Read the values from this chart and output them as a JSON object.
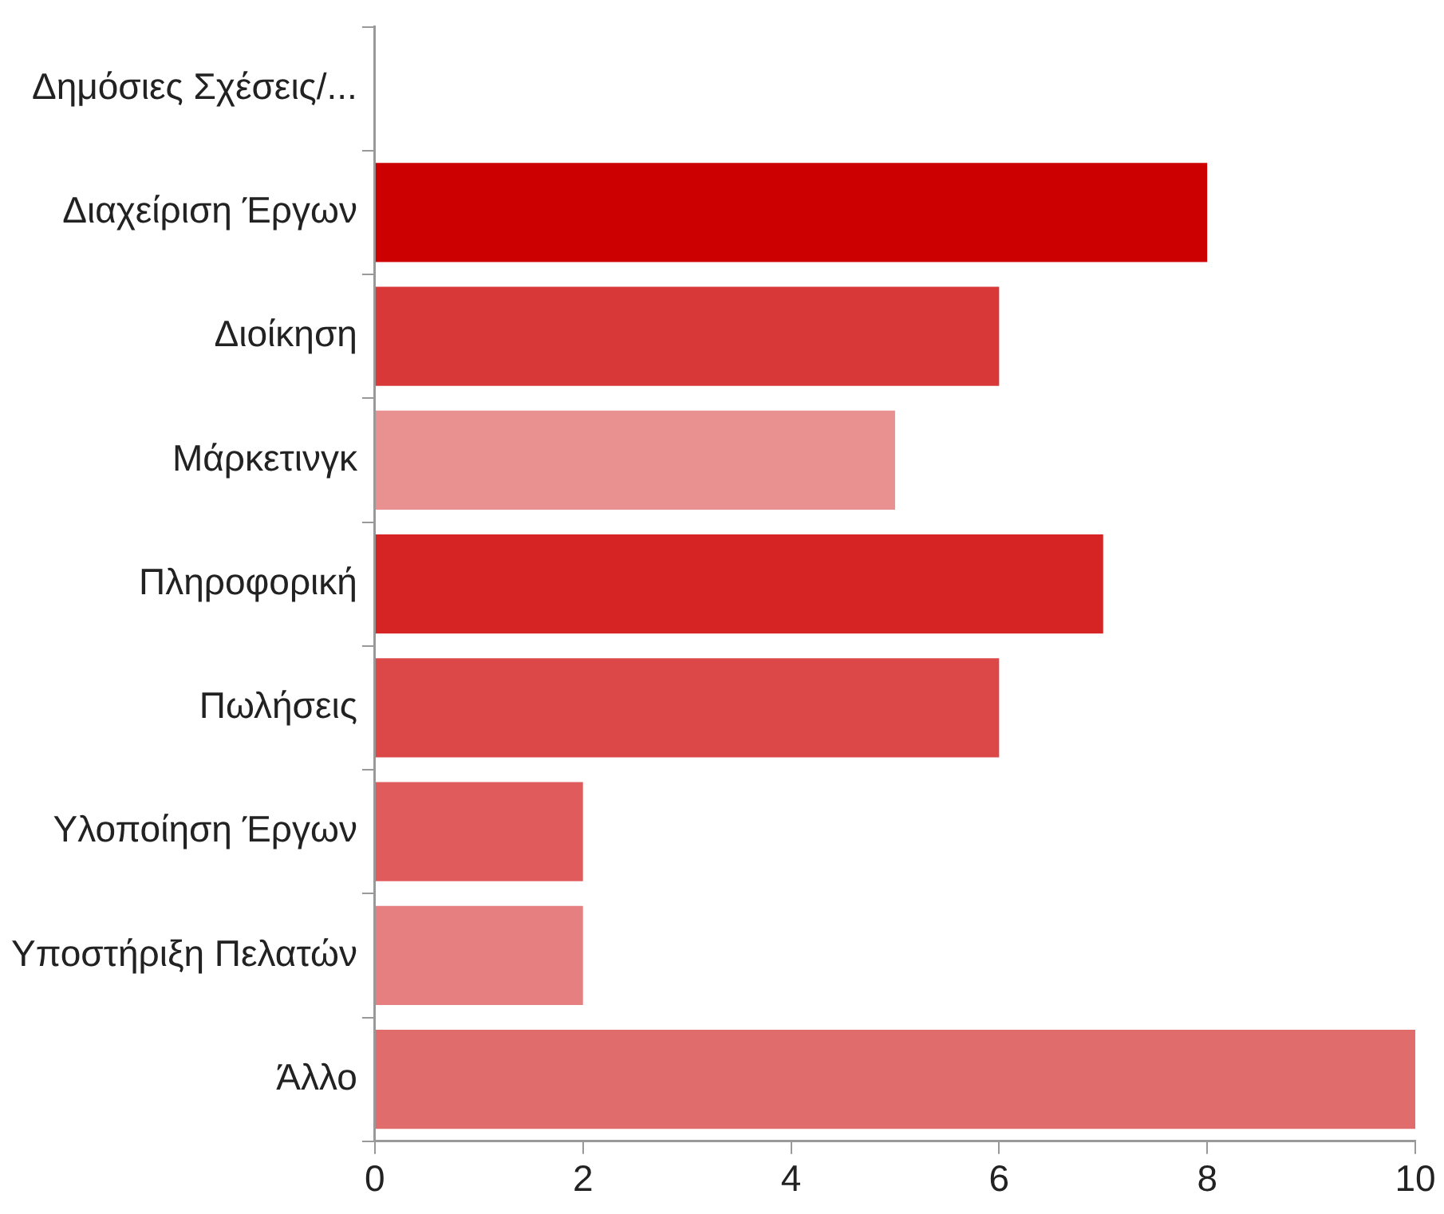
{
  "chart_data": {
    "type": "bar",
    "orientation": "horizontal",
    "categories": [
      "Δημόσιες Σχέσεις/...",
      "Διαχείριση Έργων",
      "Διοίκηση",
      "Μάρκετινγκ",
      "Πληροφορική",
      "Πωλήσεις",
      "Υλοποίηση Έργων",
      "Υποστήριξη Πελατών",
      "Άλλο"
    ],
    "values": [
      0,
      8,
      6,
      5,
      7,
      6,
      2,
      2,
      10
    ],
    "colors": [
      "#cc0000",
      "#cc0000",
      "#d93838",
      "#e99191",
      "#d62424",
      "#dc4848",
      "#e05b5b",
      "#e67f7f",
      "#e06c6c"
    ],
    "xlim": [
      0,
      10
    ],
    "xticks": [
      0,
      2,
      4,
      6,
      8,
      10
    ],
    "grid": false,
    "legend": false
  }
}
